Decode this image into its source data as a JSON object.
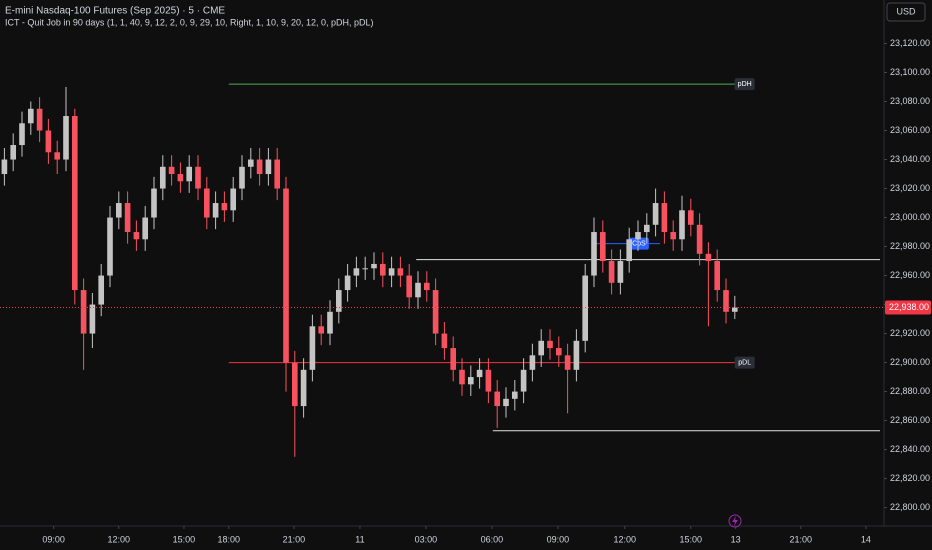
{
  "chart_data": {
    "type": "candlestick",
    "title": "E-mini Nasdaq-100 Futures (Sep 2025) · 5 · CME",
    "subtitle": "ICT - Quit Job in 90 days (1, 1, 40, 9, 12, 2, 0, 9, 29, 10, Right, 1, 10, 9, 20, 12, 0, pDH, pDL)",
    "currency": "USD",
    "up_color": "#c4c4c4",
    "down_color": "#f7525f",
    "x": [
      0,
      1,
      2,
      3,
      4,
      5,
      6,
      7,
      8,
      9,
      10,
      11,
      12,
      13,
      14,
      15,
      16,
      17,
      18,
      19,
      20,
      21,
      22,
      23,
      24,
      25,
      26,
      27,
      28,
      29,
      30,
      31,
      32,
      33,
      34,
      35,
      36,
      37,
      38,
      39,
      40,
      41,
      42,
      43,
      44,
      45,
      46,
      47,
      48,
      49,
      50,
      51,
      52,
      53,
      54,
      55,
      56,
      57,
      58,
      59,
      60,
      61,
      62,
      63,
      64,
      65,
      66,
      67,
      68,
      69,
      70,
      71,
      72,
      73,
      74,
      75,
      76,
      77,
      78,
      79,
      80,
      81,
      82,
      83
    ],
    "open": [
      23030,
      23040,
      23050,
      23065,
      23075,
      23060,
      23045,
      23040,
      23070,
      22950,
      22920,
      22940,
      22960,
      23000,
      23010,
      22990,
      22985,
      23000,
      23020,
      23035,
      23030,
      23025,
      23035,
      23020,
      23000,
      23010,
      23005,
      23020,
      23035,
      23040,
      23030,
      23040,
      23020,
      22900,
      22870,
      22895,
      22925,
      22920,
      22935,
      22950,
      22960,
      22965,
      22965,
      22968,
      22960,
      22965,
      22960,
      22945,
      22955,
      22950,
      22920,
      22910,
      22895,
      22885,
      22890,
      22895,
      22880,
      22870,
      22875,
      22880,
      22895,
      22905,
      22915,
      22910,
      22905,
      22895,
      22915,
      22960,
      22990,
      22970,
      22955,
      22970,
      22985,
      22990,
      22995,
      23010,
      22990,
      22985,
      23005,
      22995,
      22975,
      22970,
      22950,
      22935
    ],
    "high": [
      23048,
      23058,
      23073,
      23080,
      23083,
      23068,
      23053,
      23090,
      23075,
      22958,
      22948,
      22968,
      23008,
      23018,
      23018,
      22998,
      23008,
      23028,
      23043,
      23043,
      23038,
      23043,
      23043,
      23028,
      23018,
      23018,
      23028,
      23043,
      23048,
      23048,
      23048,
      23048,
      23028,
      22908,
      22903,
      22933,
      22933,
      22943,
      22958,
      22968,
      22973,
      22973,
      22976,
      22976,
      22973,
      22973,
      22968,
      22963,
      22963,
      22958,
      22928,
      22918,
      22903,
      22898,
      22903,
      22903,
      22888,
      22883,
      22888,
      22903,
      22913,
      22923,
      22923,
      22918,
      22913,
      22923,
      22968,
      23000,
      22998,
      22978,
      22978,
      22993,
      22998,
      23003,
      23020,
      23018,
      22998,
      23015,
      23013,
      23003,
      22983,
      22978,
      22958,
      22946
    ],
    "low": [
      23022,
      23032,
      23042,
      23057,
      23052,
      23037,
      23030,
      23032,
      22940,
      22895,
      22910,
      22932,
      22952,
      22992,
      22982,
      22977,
      22977,
      22992,
      23012,
      23022,
      23017,
      23017,
      23012,
      22992,
      22992,
      22997,
      22997,
      23012,
      23027,
      23022,
      23022,
      23012,
      22880,
      22835,
      22862,
      22887,
      22912,
      22912,
      22927,
      22942,
      22952,
      22957,
      22957,
      22952,
      22952,
      22952,
      22937,
      22937,
      22942,
      22912,
      22902,
      22887,
      22877,
      22877,
      22882,
      22872,
      22855,
      22862,
      22867,
      22872,
      22887,
      22897,
      22902,
      22897,
      22865,
      22887,
      22907,
      22952,
      22962,
      22947,
      22947,
      22962,
      22977,
      22982,
      22987,
      22982,
      22977,
      22977,
      22987,
      22967,
      22925,
      22942,
      22927,
      22930
    ],
    "close": [
      23040,
      23050,
      23065,
      23075,
      23060,
      23045,
      23040,
      23070,
      22950,
      22920,
      22940,
      22960,
      23000,
      23010,
      22990,
      22985,
      23000,
      23020,
      23035,
      23030,
      23025,
      23035,
      23020,
      23000,
      23010,
      23005,
      23020,
      23035,
      23040,
      23030,
      23040,
      23020,
      22900,
      22870,
      22895,
      22925,
      22920,
      22935,
      22950,
      22960,
      22965,
      22965,
      22968,
      22960,
      22965,
      22960,
      22945,
      22955,
      22950,
      22920,
      22910,
      22895,
      22885,
      22890,
      22895,
      22880,
      22870,
      22875,
      22880,
      22895,
      22905,
      22915,
      22910,
      22905,
      22895,
      22915,
      22960,
      22990,
      22970,
      22955,
      22970,
      22985,
      22990,
      22995,
      23010,
      22990,
      22985,
      23005,
      22995,
      22975,
      22970,
      22950,
      22935,
      22938
    ],
    "xlim": [
      0,
      100
    ],
    "xticks": [
      {
        "value": 6.1,
        "label": "09:00"
      },
      {
        "value": 13.5,
        "label": "12:00"
      },
      {
        "value": 20.9,
        "label": "15:00"
      },
      {
        "value": 26,
        "label": "18:00"
      },
      {
        "value": 33.4,
        "label": "21:00"
      },
      {
        "value": 40.9,
        "label": "11"
      },
      {
        "value": 48.4,
        "label": "03:00"
      },
      {
        "value": 55.9,
        "label": "06:00"
      },
      {
        "value": 63.4,
        "label": "09:00"
      },
      {
        "value": 71,
        "label": "12:00"
      },
      {
        "value": 78.5,
        "label": "15:00"
      },
      {
        "value": 83.6,
        "label": "13"
      },
      {
        "value": 91,
        "label": "21:00"
      },
      {
        "value": 98.4,
        "label": "14"
      }
    ],
    "ylim": [
      22788,
      23150
    ],
    "yticks": [
      {
        "value": 22800,
        "label": "22,800.00"
      },
      {
        "value": 22820,
        "label": "22,820.00"
      },
      {
        "value": 22840,
        "label": "22,840.00"
      },
      {
        "value": 22860,
        "label": "22,860.00"
      },
      {
        "value": 22880,
        "label": "22,880.00"
      },
      {
        "value": 22900,
        "label": "22,900.00"
      },
      {
        "value": 22920,
        "label": "22,920.00"
      },
      {
        "value": 22940,
        "label": "22,940.00"
      },
      {
        "value": 22960,
        "label": "22,960.00"
      },
      {
        "value": 22980,
        "label": "22,980.00"
      },
      {
        "value": 23000,
        "label": "23,000.00"
      },
      {
        "value": 23020,
        "label": "23,020.00"
      },
      {
        "value": 23040,
        "label": "23,040.00"
      },
      {
        "value": 23060,
        "label": "23,060.00"
      },
      {
        "value": 23080,
        "label": "23,080.00"
      },
      {
        "value": 23100,
        "label": "23,100.00"
      },
      {
        "value": 23120,
        "label": "23,120.00"
      }
    ],
    "last_price": {
      "value": 22938,
      "label": "22,938.00"
    },
    "last_price_color": "#f23645",
    "levels": [
      {
        "value": 23092,
        "start": 26,
        "end": 83.6,
        "color": "#4caf50",
        "label": "pDH"
      },
      {
        "value": 22900,
        "start": 26,
        "end": 83.6,
        "color": "#f23645",
        "label": "pDL"
      },
      {
        "value": 22971,
        "start": 47.3,
        "end": 100,
        "color": "#e0e0e0"
      },
      {
        "value": 22853,
        "start": 56,
        "end": 100,
        "color": "#e0e0e0"
      },
      {
        "value": 22982,
        "start": 67.7,
        "end": 75,
        "color": "#2962ff",
        "label": "CoS"
      }
    ]
  }
}
